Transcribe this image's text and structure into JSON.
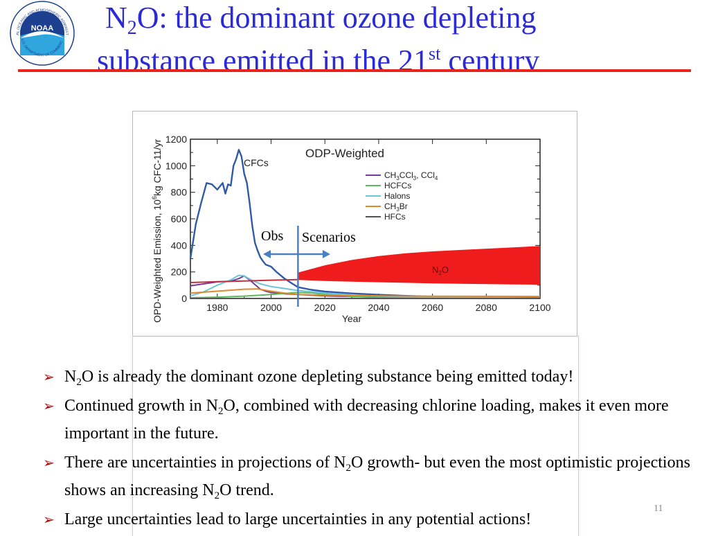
{
  "logo": {
    "icon": "noaa-logo",
    "ring_text": "NATIONAL OCEANIC AND ATMOSPHERIC ADMINISTRATION",
    "bottom_text": "U.S. DEPARTMENT OF COMMERCE",
    "center_text": "NOAA"
  },
  "title": {
    "line1_a": "N",
    "line1_sub": "2",
    "line1_b": "O: the dominant ozone depleting",
    "line2_a": "substance emitted in the 21",
    "line2_sup": "st",
    "line2_b": " century"
  },
  "colors": {
    "title": "#2b2bd6",
    "rule": "#e8251a",
    "arrow": "#c00000",
    "n2o": "#ee1c1c",
    "cfc": "#2f5aa8"
  },
  "chart_data": {
    "type": "line",
    "title": "ODP-Weighted",
    "xlabel": "Year",
    "ylabel_a": "OPD-Weighted Emission, 10",
    "ylabel_sup": "6",
    "ylabel_b": "kg CFC-11/yr",
    "xlim": [
      1970,
      2100
    ],
    "ylim": [
      0,
      1200
    ],
    "x_ticks": [
      "1980",
      "2000",
      "2020",
      "2040",
      "2060",
      "2080",
      "2100"
    ],
    "y_ticks": [
      "0",
      "200",
      "400",
      "600",
      "800",
      "1000",
      "1200"
    ],
    "series": [
      {
        "name": "CFCs",
        "color": "#2f5aa8",
        "x": [
          1970,
          1972,
          1974,
          1976,
          1978,
          1980,
          1982,
          1983,
          1984,
          1985,
          1986,
          1987,
          1988,
          1989,
          1990,
          1991,
          1992,
          1993,
          1994,
          1995,
          1996,
          1997,
          1998,
          2000,
          2002,
          2005,
          2008,
          2010,
          2015,
          2020,
          2030,
          2040,
          2050,
          2060,
          2070,
          2080,
          2090,
          2100
        ],
        "y": [
          300,
          560,
          720,
          870,
          860,
          820,
          870,
          790,
          860,
          850,
          1000,
          1050,
          1120,
          1070,
          940,
          870,
          720,
          550,
          420,
          360,
          310,
          280,
          255,
          240,
          200,
          150,
          110,
          85,
          65,
          52,
          38,
          28,
          20,
          14,
          10,
          7,
          5,
          4
        ]
      },
      {
        "name": "CH3CCl3, CCl4",
        "color": "#7a3a9a",
        "x": [
          1970,
          1975,
          1980,
          1985,
          1988,
          1990,
          1992,
          1994,
          1996,
          1998,
          2000,
          2005,
          2010,
          2020,
          2030,
          2050,
          2100
        ],
        "y": [
          95,
          110,
          125,
          130,
          150,
          170,
          140,
          105,
          70,
          55,
          45,
          35,
          30,
          20,
          14,
          6,
          2
        ]
      },
      {
        "name": "HCFCs",
        "color": "#5cb85c",
        "x": [
          1970,
          1980,
          1990,
          2000,
          2005,
          2010,
          2015,
          2020,
          2030,
          2040,
          2050,
          2100
        ],
        "y": [
          5,
          10,
          18,
          30,
          38,
          45,
          42,
          32,
          15,
          8,
          5,
          1
        ]
      },
      {
        "name": "Halons",
        "color": "#6cc6d9",
        "x": [
          1970,
          1975,
          1980,
          1985,
          1988,
          1990,
          1993,
          1996,
          2000,
          2005,
          2010,
          2020,
          2030,
          2050,
          2100
        ],
        "y": [
          20,
          50,
          100,
          140,
          175,
          170,
          135,
          110,
          90,
          75,
          60,
          40,
          25,
          12,
          2
        ]
      },
      {
        "name": "CH3Br",
        "color": "#e08a2a",
        "x": [
          1970,
          1980,
          1990,
          1995,
          2000,
          2005,
          2010,
          2020,
          2050,
          2100
        ],
        "y": [
          40,
          55,
          70,
          72,
          55,
          40,
          30,
          25,
          18,
          15
        ]
      },
      {
        "name": "HFCs",
        "color": "#555555",
        "x": [
          1970,
          2100
        ],
        "y": [
          0,
          0
        ]
      },
      {
        "name": "N2O",
        "color": "#c03040",
        "x": [
          1970,
          1980,
          1990,
          2000,
          2010
        ],
        "y": [
          120,
          126,
          132,
          138,
          142
        ]
      }
    ],
    "n2o_band": {
      "name": "N2O",
      "label_a": "N",
      "label_sub": "2",
      "label_b": "O",
      "color": "#ee1c1c",
      "x": [
        2010,
        2020,
        2030,
        2040,
        2050,
        2060,
        2070,
        2080,
        2090,
        2100
      ],
      "upper": [
        195,
        250,
        290,
        320,
        340,
        355,
        365,
        375,
        385,
        395
      ],
      "lower": [
        140,
        132,
        127,
        122,
        118,
        114,
        111,
        108,
        106,
        104
      ]
    },
    "legend": [
      {
        "label_a": "CH",
        "label_sub1": "3",
        "label_b": "CCl",
        "label_sub2": "3",
        "label_c": ", CCl",
        "label_sub3": "4",
        "color": "#7a3a9a"
      },
      {
        "label": "HCFCs",
        "color": "#5cb85c"
      },
      {
        "label": "Halons",
        "color": "#6cc6d9"
      },
      {
        "label_a": "CH",
        "label_sub1": "3",
        "label_b": "Br",
        "color": "#e08a2a"
      },
      {
        "label": "HFCs",
        "color": "#555555"
      }
    ],
    "legend_position": "upper-right",
    "obs_label": "Obs",
    "scenarios_label": "Scenarios",
    "divider_year": 2010,
    "cfc_label": "CFCs"
  },
  "bullets": [
    {
      "a": "N",
      "sub": "2",
      "b": "O is already the dominant ozone depleting substance being emitted today!"
    },
    {
      "a": "Continued growth in N",
      "sub": "2",
      "b": "O, combined with decreasing chlorine loading, makes it even more important in the future."
    },
    {
      "a": "There are uncertainties in projections of N",
      "sub": "2",
      "b": "O growth- but even the most optimistic projections shows an increasing N",
      "sub2": "2",
      "c": "O trend."
    },
    {
      "a": "Large uncertainties lead to large uncertainties in any potential actions!"
    }
  ],
  "page_number": "11"
}
